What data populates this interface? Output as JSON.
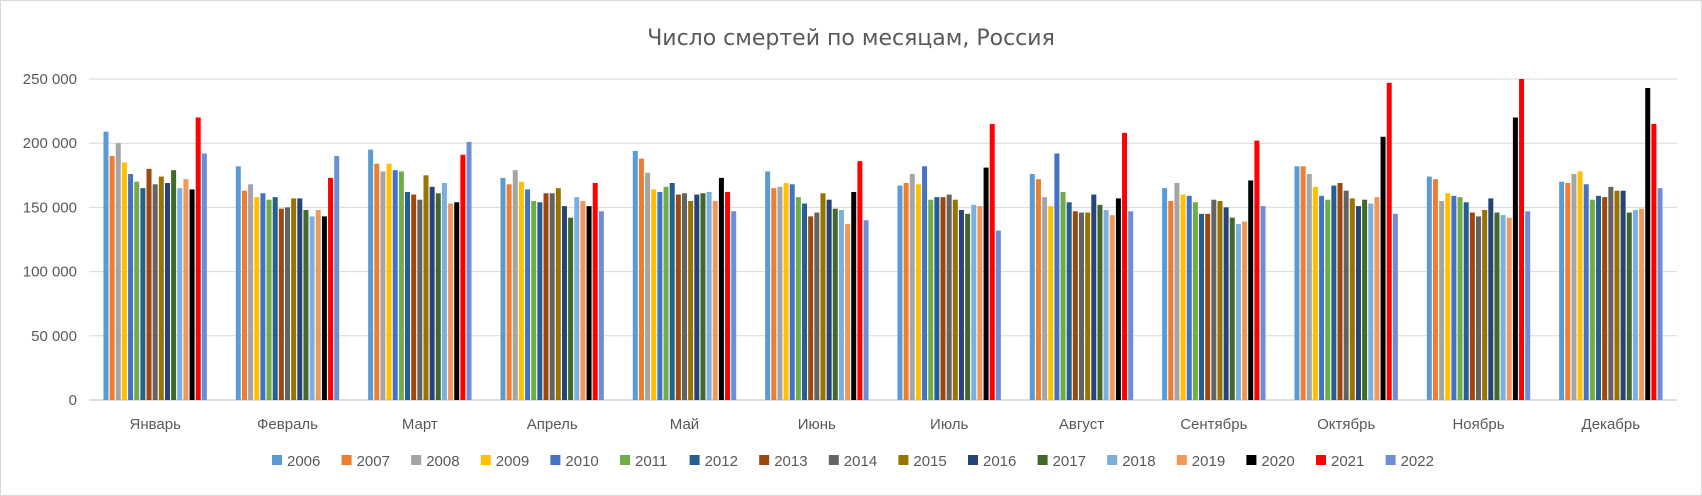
{
  "chart_data": {
    "type": "bar",
    "title": "Число смертей по месяцам, Россия",
    "xlabel": "",
    "ylabel": "",
    "ylim": [
      0,
      250000
    ],
    "y_ticks": [
      "0",
      "50 000",
      "100 000",
      "150 000",
      "200 000",
      "250 000"
    ],
    "grid": true,
    "legend_position": "bottom",
    "categories": [
      "Январь",
      "Февраль",
      "Март",
      "Апрель",
      "Май",
      "Июнь",
      "Июль",
      "Август",
      "Сентябрь",
      "Октябрь",
      "Ноябрь",
      "Декабрь"
    ],
    "series": [
      {
        "name": "2006",
        "color": "#5b9bd5",
        "values": [
          209000,
          182000,
          195000,
          173000,
          194000,
          178000,
          167000,
          176000,
          165000,
          182000,
          174000,
          170000
        ]
      },
      {
        "name": "2007",
        "color": "#ed7d31",
        "values": [
          190000,
          163000,
          184000,
          168000,
          188000,
          165000,
          169000,
          172000,
          155000,
          182000,
          172000,
          169000
        ]
      },
      {
        "name": "2008",
        "color": "#a5a5a5",
        "values": [
          200000,
          168000,
          178000,
          179000,
          177000,
          166000,
          176000,
          158000,
          169000,
          176000,
          155000,
          176000
        ]
      },
      {
        "name": "2009",
        "color": "#ffc000",
        "values": [
          185000,
          158000,
          184000,
          170000,
          164000,
          169000,
          168000,
          151000,
          160000,
          166000,
          161000,
          178000
        ]
      },
      {
        "name": "2010",
        "color": "#4472c4",
        "values": [
          176000,
          161000,
          179000,
          164000,
          162000,
          168000,
          182000,
          192000,
          159000,
          159000,
          159000,
          168000
        ]
      },
      {
        "name": "2011",
        "color": "#70ad47",
        "values": [
          170000,
          156000,
          178000,
          155000,
          166000,
          158000,
          156000,
          162000,
          154000,
          156000,
          158000,
          156000
        ]
      },
      {
        "name": "2012",
        "color": "#255e91",
        "values": [
          165000,
          158000,
          162000,
          154000,
          169000,
          153000,
          158000,
          154000,
          145000,
          167000,
          154000,
          159000
        ]
      },
      {
        "name": "2013",
        "color": "#9e480e",
        "values": [
          180000,
          149000,
          160000,
          161000,
          160000,
          143000,
          158000,
          147000,
          145000,
          169000,
          146000,
          158000
        ]
      },
      {
        "name": "2014",
        "color": "#636363",
        "values": [
          168000,
          150000,
          156000,
          161000,
          161000,
          146000,
          160000,
          146000,
          156000,
          163000,
          143000,
          166000
        ]
      },
      {
        "name": "2015",
        "color": "#997300",
        "values": [
          174000,
          157000,
          175000,
          165000,
          155000,
          161000,
          156000,
          146000,
          155000,
          157000,
          148000,
          163000
        ]
      },
      {
        "name": "2016",
        "color": "#264478",
        "values": [
          169000,
          157000,
          166000,
          151000,
          160000,
          156000,
          148000,
          160000,
          150000,
          151000,
          157000,
          163000
        ]
      },
      {
        "name": "2017",
        "color": "#43682b",
        "values": [
          179000,
          148000,
          161000,
          142000,
          161000,
          149000,
          145000,
          152000,
          142000,
          156000,
          146000,
          146000
        ]
      },
      {
        "name": "2018",
        "color": "#7cafdd",
        "values": [
          165000,
          143000,
          169000,
          158000,
          162000,
          148000,
          152000,
          148000,
          137000,
          153000,
          144000,
          148000
        ]
      },
      {
        "name": "2019",
        "color": "#f1975a",
        "values": [
          172000,
          148000,
          153000,
          155000,
          155000,
          137000,
          151000,
          144000,
          139000,
          158000,
          142000,
          149000
        ]
      },
      {
        "name": "2020",
        "color": "#000000",
        "values": [
          164000,
          143000,
          154000,
          151000,
          173000,
          162000,
          181000,
          157000,
          171000,
          205000,
          220000,
          243000
        ]
      },
      {
        "name": "2021",
        "color": "#ff0000",
        "values": [
          220000,
          173000,
          191000,
          169000,
          162000,
          186000,
          215000,
          208000,
          202000,
          247000,
          250000,
          215000
        ]
      },
      {
        "name": "2022",
        "color": "#6b8ed6",
        "values": [
          192000,
          190000,
          201000,
          147000,
          147000,
          140000,
          132000,
          147000,
          151000,
          145000,
          147000,
          165000
        ]
      }
    ]
  }
}
